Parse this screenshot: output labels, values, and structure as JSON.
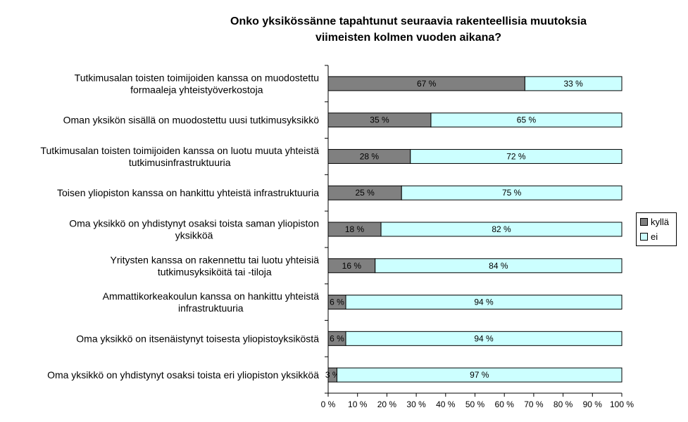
{
  "chart_data": {
    "type": "bar",
    "orientation": "horizontal",
    "stacked": true,
    "title": "Onko yksikössänne tapahtunut seuraavia rakenteellisia muutoksia viimeisten kolmen vuoden aikana?",
    "title_lines": [
      "Onko yksikössänne tapahtunut seuraavia rakenteellisia muutoksia",
      "viimeisten kolmen vuoden aikana?"
    ],
    "categories": [
      [
        "Tutkimusalan toisten toimijoiden kanssa on muodostettu",
        "formaaleja yhteistyöverkostoja"
      ],
      [
        "Oman yksikön sisällä on muodostettu uusi tutkimusyksikkö"
      ],
      [
        "Tutkimusalan toisten toimijoiden kanssa on luotu muuta yhteistä",
        "tutkimusinfrastruktuuria"
      ],
      [
        "Toisen yliopiston kanssa on hankittu yhteistä infrastruktuuria"
      ],
      [
        "Oma yksikkö on yhdistynyt osaksi toista saman yliopiston",
        "yksikköä"
      ],
      [
        "Yritysten kanssa on rakennettu tai luotu yhteisiä",
        "tutkimusyksiköitä tai -tiloja"
      ],
      [
        "Ammattikorkeakoulun kanssa on hankittu yhteistä",
        "infrastruktuuria"
      ],
      [
        "Oma yksikkö on itsenäistynyt toisesta yliopistoyksiköstä"
      ],
      [
        "Oma yksikkö on yhdistynyt osaksi toista eri yliopiston yksikköä"
      ]
    ],
    "series": [
      {
        "name": "kyllä",
        "color": "#808080",
        "values": [
          67,
          35,
          28,
          25,
          18,
          16,
          6,
          6,
          3
        ],
        "labels": [
          "67 %",
          "35 %",
          "28 %",
          "25 %",
          "18 %",
          "16 %",
          "6 %",
          "6 %",
          "3 %"
        ]
      },
      {
        "name": "ei",
        "color": "#ccffff",
        "values": [
          33,
          65,
          72,
          75,
          82,
          84,
          94,
          94,
          97
        ],
        "labels": [
          "33 %",
          "65 %",
          "72 %",
          "75 %",
          "82 %",
          "84 %",
          "94 %",
          "94 %",
          "97 %"
        ]
      }
    ],
    "xlim": [
      0,
      100
    ],
    "x_ticks": [
      "0 %",
      "10 %",
      "20 %",
      "30 %",
      "40 %",
      "50 %",
      "60 %",
      "70 %",
      "80 %",
      "90 %",
      "100 %"
    ],
    "grid": false,
    "legend_position": "right"
  }
}
